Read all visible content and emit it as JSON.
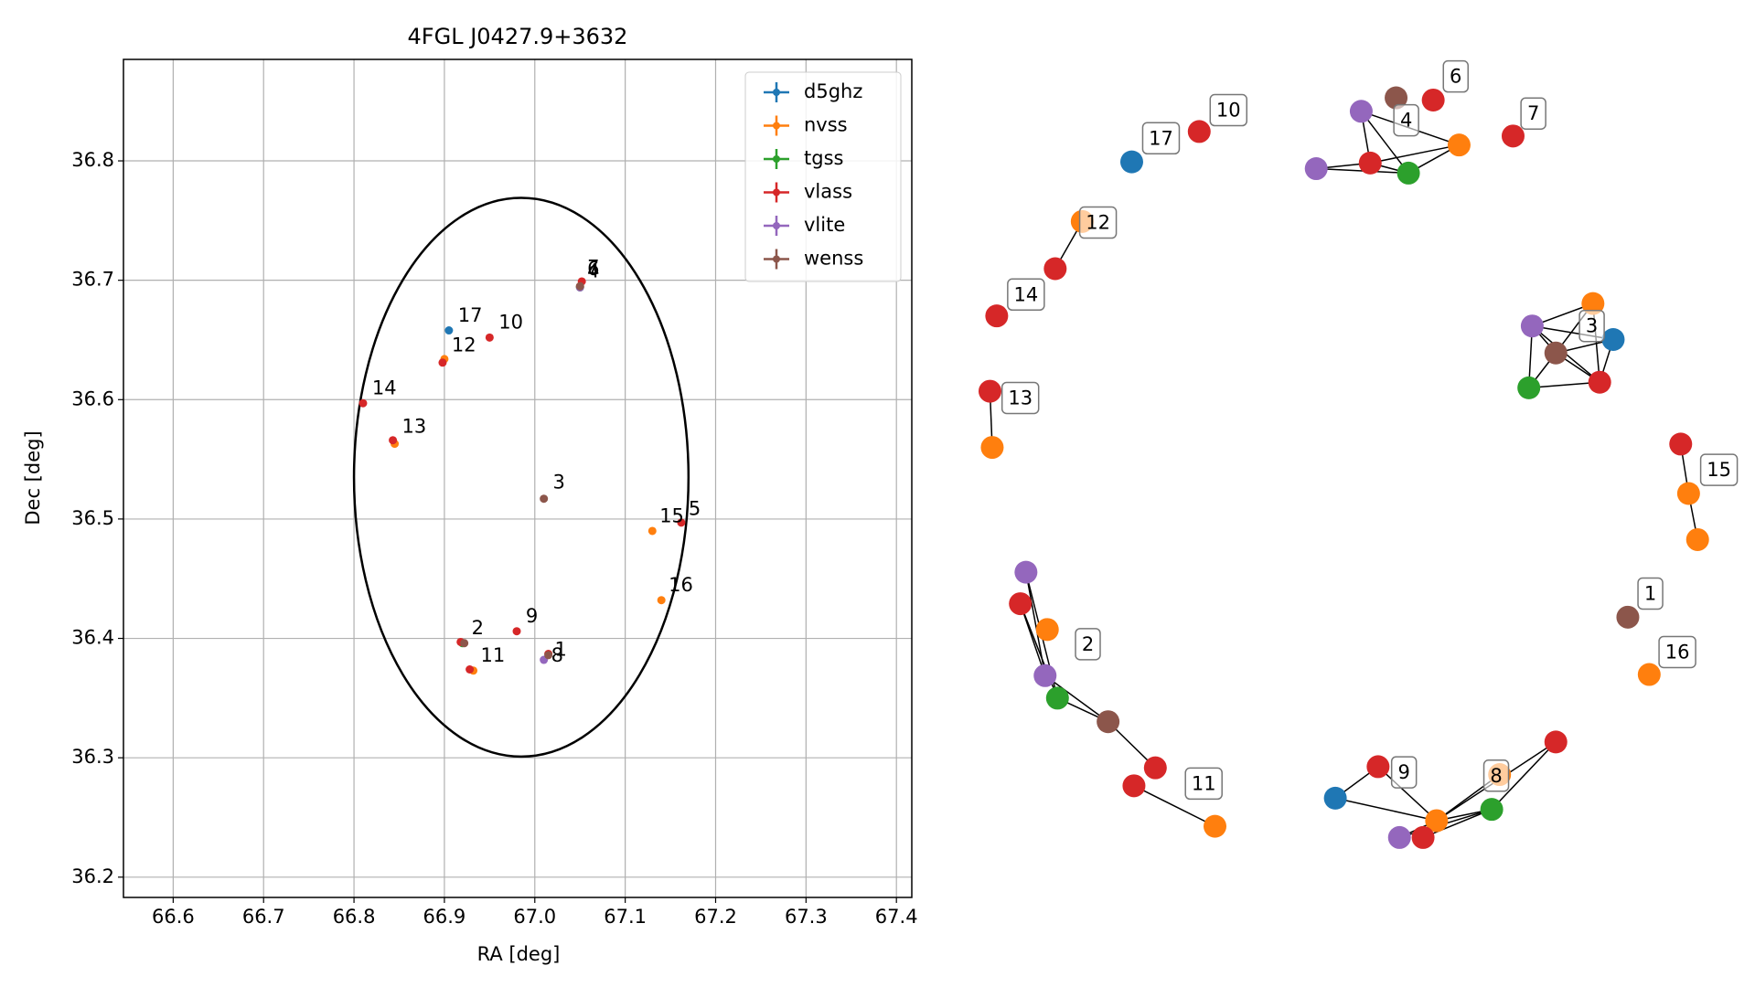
{
  "chart_data": {
    "type": "scatter",
    "title": "4FGL J0427.9+3632",
    "x_label": "RA [deg]",
    "y_label": "Dec [deg]",
    "xlim": [
      66.545,
      67.417
    ],
    "ylim": [
      36.183,
      36.885
    ],
    "xticks": [
      66.6,
      66.7,
      66.8,
      66.9,
      {
        "value": 67,
        "label": "67.0"
      },
      67.1,
      67.2,
      67.3,
      67.4
    ],
    "yticks": [
      36.2,
      36.3,
      36.4,
      36.5,
      36.6,
      36.7,
      36.8
    ],
    "grid": true,
    "legend": "upper right",
    "series": [
      {
        "name": "d5ghz",
        "color": "#1f77b4",
        "x": [
          66.905
        ],
        "y": [
          36.658
        ]
      },
      {
        "name": "nvss",
        "color": "#ff7f0e",
        "x": [
          66.9,
          66.845,
          67.13,
          67.14,
          66.932,
          67.05
        ],
        "y": [
          36.634,
          36.563,
          36.49,
          36.432,
          36.373,
          36.695
        ]
      },
      {
        "name": "tgss",
        "color": "#2ca02c",
        "x": [
          66.92,
          67.05
        ],
        "y": [
          36.396,
          36.694
        ]
      },
      {
        "name": "vlass",
        "color": "#d62728",
        "x": [
          66.95,
          66.898,
          66.81,
          66.843,
          67.162,
          66.98,
          66.928,
          67.015,
          67.052,
          66.918
        ],
        "y": [
          36.652,
          36.631,
          36.597,
          36.566,
          36.497,
          36.406,
          36.374,
          36.387,
          36.699,
          36.397
        ]
      },
      {
        "name": "vlite",
        "color": "#9467bd",
        "x": [
          67.01,
          67.05
        ],
        "y": [
          36.382,
          36.694
        ]
      },
      {
        "name": "wenss",
        "color": "#8c564b",
        "x": [
          67.01,
          66.922,
          67.015,
          67.05
        ],
        "y": [
          36.517,
          36.396,
          36.386,
          36.695
        ]
      }
    ],
    "ellipse": {
      "center": [
        66.985,
        36.535
      ],
      "width": 0.37,
      "height": 0.468
    },
    "annotations": [
      {
        "text": "17",
        "x": 66.915,
        "y": 36.67
      },
      {
        "text": "10",
        "x": 66.96,
        "y": 36.664
      },
      {
        "text": "12",
        "x": 66.908,
        "y": 36.645
      },
      {
        "text": "14",
        "x": 66.82,
        "y": 36.609
      },
      {
        "text": "13",
        "x": 66.853,
        "y": 36.577
      },
      {
        "text": "3",
        "x": 67.02,
        "y": 36.53
      },
      {
        "text": "15",
        "x": 67.138,
        "y": 36.502
      },
      {
        "text": "5",
        "x": 67.17,
        "y": 36.508
      },
      {
        "text": "16",
        "x": 67.148,
        "y": 36.444
      },
      {
        "text": "9",
        "x": 66.99,
        "y": 36.418
      },
      {
        "text": "2",
        "x": 66.93,
        "y": 36.408
      },
      {
        "text": "1",
        "x": 67.022,
        "y": 36.39
      },
      {
        "text": "8",
        "x": 67.018,
        "y": 36.385
      },
      {
        "text": "11",
        "x": 66.94,
        "y": 36.385
      },
      {
        "text": "7",
        "x": 67.058,
        "y": 36.71
      },
      {
        "text": "6",
        "x": 67.058,
        "y": 36.709
      },
      {
        "text": "4",
        "x": 67.058,
        "y": 36.707
      }
    ]
  },
  "network": {
    "nodes": [
      "d5ghz",
      "vlass",
      "nvss",
      "vlass",
      "vlass",
      "vlass",
      "nvss",
      "vlite",
      "wenss",
      "vlass",
      "vlass",
      "tgss",
      "nvss",
      "vlite",
      "vlass",
      "nvss",
      "vlite",
      "wenss",
      "d5ghz",
      "tgss",
      "vlass",
      "vlass",
      "nvss",
      "nvss",
      "wenss",
      "nvss",
      "vlite",
      "vlass",
      "nvss",
      "vlite",
      "tgss",
      "wenss",
      "vlass",
      "vlass",
      "nvss",
      "d5ghz",
      "vlass",
      "nvss",
      "vlite",
      "vlass",
      "tgss",
      "nvss",
      "vlass"
    ],
    "labels": [
      "17",
      "10",
      "12",
      "14",
      "13",
      "6",
      "7",
      "4",
      "3",
      "15",
      "1",
      "16",
      "2",
      "11",
      "9",
      "8"
    ]
  }
}
